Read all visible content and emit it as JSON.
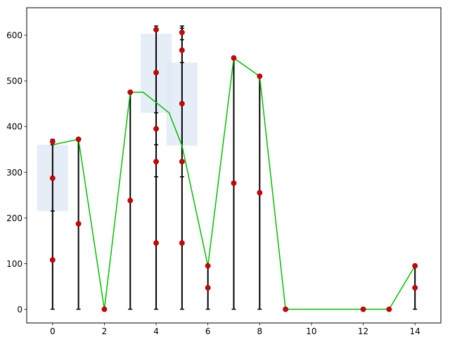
{
  "chart_data": {
    "type": "line",
    "title": "",
    "xlabel": "",
    "ylabel": "",
    "xlim": [
      -1,
      15
    ],
    "ylim": [
      -30,
      660
    ],
    "x_ticks": [
      0,
      2,
      4,
      6,
      8,
      10,
      12,
      14
    ],
    "y_ticks": [
      0,
      100,
      200,
      300,
      400,
      500,
      600
    ],
    "grid": false,
    "legend": "none",
    "colors": {
      "line": "#00c000",
      "points": "#d40000",
      "point_edge": "#8b0000",
      "range_bars": "#000000",
      "boxes": "#dce8f4"
    },
    "line_series": {
      "x": [
        0,
        1,
        2,
        3,
        3.5,
        4.5,
        5,
        6,
        7,
        8,
        9,
        12,
        13,
        14
      ],
      "y": [
        360,
        372,
        0,
        475,
        475,
        430,
        358,
        95,
        550,
        510,
        0,
        0,
        0,
        95
      ]
    },
    "points": [
      {
        "x": 0,
        "y": 108
      },
      {
        "x": 0,
        "y": 287
      },
      {
        "x": 0,
        "y": 367
      },
      {
        "x": 1,
        "y": 187
      },
      {
        "x": 1,
        "y": 372
      },
      {
        "x": 2,
        "y": 0
      },
      {
        "x": 3,
        "y": 238
      },
      {
        "x": 3,
        "y": 475
      },
      {
        "x": 4,
        "y": 145
      },
      {
        "x": 4,
        "y": 323
      },
      {
        "x": 4,
        "y": 395
      },
      {
        "x": 4,
        "y": 518
      },
      {
        "x": 4,
        "y": 612
      },
      {
        "x": 5,
        "y": 145
      },
      {
        "x": 5,
        "y": 323
      },
      {
        "x": 5,
        "y": 450
      },
      {
        "x": 5,
        "y": 567
      },
      {
        "x": 5,
        "y": 606
      },
      {
        "x": 6,
        "y": 47
      },
      {
        "x": 6,
        "y": 95
      },
      {
        "x": 7,
        "y": 276
      },
      {
        "x": 7,
        "y": 550
      },
      {
        "x": 8,
        "y": 255
      },
      {
        "x": 8,
        "y": 510
      },
      {
        "x": 9,
        "y": 0
      },
      {
        "x": 12,
        "y": 0
      },
      {
        "x": 13,
        "y": 0
      },
      {
        "x": 14,
        "y": 47
      },
      {
        "x": 14,
        "y": 95
      }
    ],
    "range_bars": [
      {
        "x": 0,
        "low": 0,
        "high": 372,
        "ticks": [
          215,
          360,
          367
        ]
      },
      {
        "x": 1,
        "low": 0,
        "high": 372,
        "ticks": []
      },
      {
        "x": 3,
        "low": 0,
        "high": 475,
        "ticks": []
      },
      {
        "x": 4,
        "low": 0,
        "high": 620,
        "ticks": [
          290,
          360,
          430,
          615
        ]
      },
      {
        "x": 5,
        "low": 0,
        "high": 620,
        "ticks": [
          290,
          540,
          590,
          615
        ]
      },
      {
        "x": 6,
        "low": 0,
        "high": 95,
        "ticks": []
      },
      {
        "x": 7,
        "low": 0,
        "high": 550,
        "ticks": []
      },
      {
        "x": 8,
        "low": 0,
        "high": 510,
        "ticks": []
      },
      {
        "x": 14,
        "low": 0,
        "high": 95,
        "ticks": []
      }
    ],
    "boxes": [
      {
        "x0": -0.6,
        "x1": 0.6,
        "y0": 215,
        "y1": 360
      },
      {
        "x0": 3.4,
        "x1": 4.6,
        "y0": 430,
        "y1": 603
      },
      {
        "x0": 4.4,
        "x1": 5.6,
        "y0": 358,
        "y1": 540
      }
    ]
  }
}
